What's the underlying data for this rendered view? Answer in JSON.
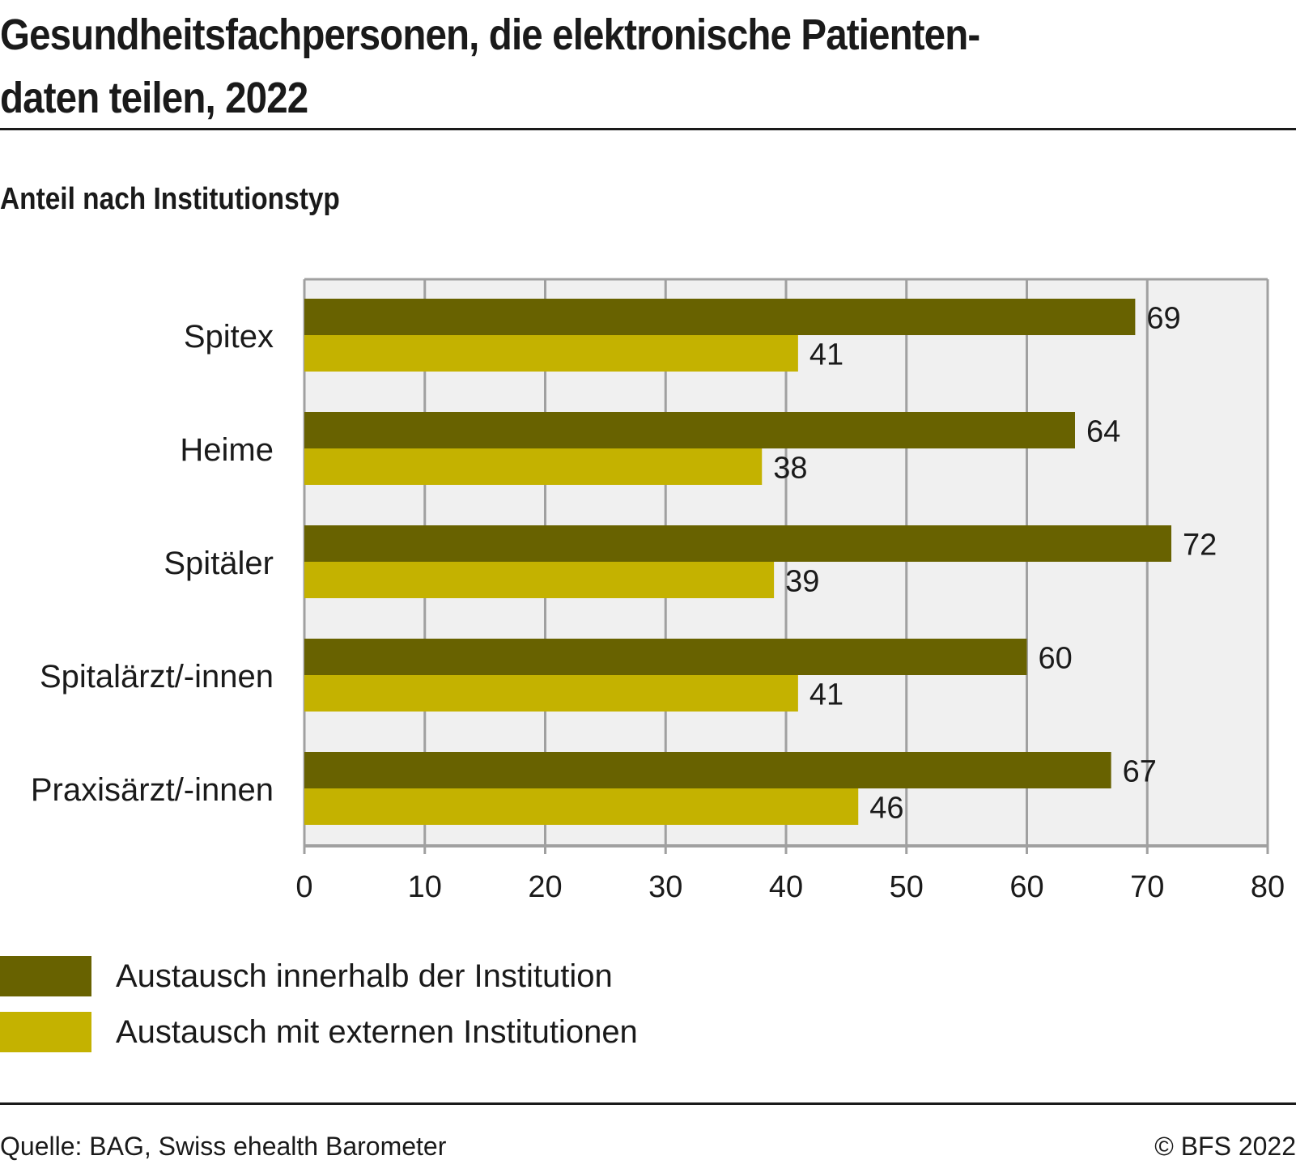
{
  "header": {
    "title_line1": "Gesundheitsfachpersonen, die elektronische Patienten-",
    "title_line2": "daten teilen, 2022",
    "subtitle": "Anteil nach Institutionstyp"
  },
  "colors": {
    "series_inner": "#686200",
    "series_external": "#c4b200",
    "plot_background": "#f0f0f0",
    "grid": "#a0a0a0",
    "text": "#1a1a1a"
  },
  "chart_data": {
    "type": "bar",
    "orientation": "horizontal",
    "title": "Gesundheitsfachpersonen, die elektronische Patientendaten teilen, 2022",
    "subtitle": "Anteil nach Institutionstyp",
    "categories": [
      "Spitex",
      "Heime",
      "Spitäler",
      "Spitalärzt/-innen",
      "Praxisärzt/-innen"
    ],
    "series": [
      {
        "name": "Austausch innerhalb der Institution",
        "values": [
          69,
          64,
          72,
          60,
          67
        ]
      },
      {
        "name": "Austausch mit externen Institutionen",
        "values": [
          41,
          38,
          39,
          41,
          46
        ]
      }
    ],
    "xlabel": "",
    "ylabel": "",
    "xlim": [
      0,
      80
    ],
    "xticks": [
      0,
      10,
      20,
      30,
      40,
      50,
      60,
      70,
      80
    ],
    "grid": true,
    "data_labels": true,
    "legend_position": "bottom-left"
  },
  "footer": {
    "source": "Quelle: BAG, Swiss ehealth Barometer",
    "copyright": "© BFS 2022"
  }
}
